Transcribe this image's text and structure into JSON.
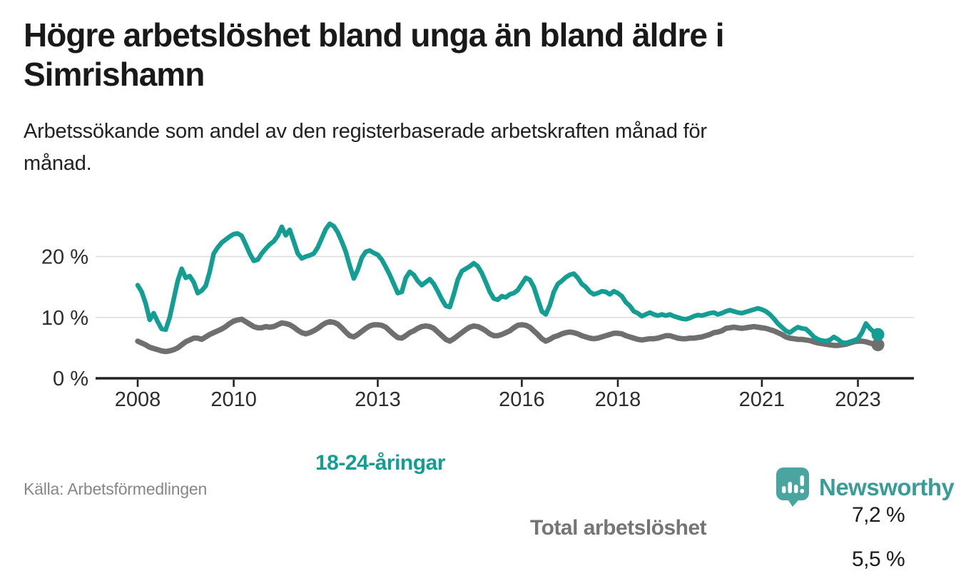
{
  "header": {
    "title_lines": [
      "Högre arbetslöshet bland unga än bland äldre i",
      "Simrishamn"
    ],
    "subtitle_lines": [
      "Arbetssökande som andel av den registerbaserade arbetskraften månad för",
      "månad."
    ]
  },
  "chart_data": {
    "type": "line",
    "unit": "%",
    "frequency": "monthly",
    "period_start": "2008-01",
    "period_end": "2023-06",
    "grid": "horizontal-only",
    "ylim": [
      0,
      27
    ],
    "y_ticks": [
      {
        "label": "0 %",
        "value": 0
      },
      {
        "label": "10 %",
        "value": 10
      },
      {
        "label": "20 %",
        "value": 20
      }
    ],
    "x_ticks": [
      {
        "label": "2008",
        "year": 2008
      },
      {
        "label": "2010",
        "year": 2010
      },
      {
        "label": "2013",
        "year": 2013
      },
      {
        "label": "2016",
        "year": 2016
      },
      {
        "label": "2018",
        "year": 2018
      },
      {
        "label": "2021",
        "year": 2021
      },
      {
        "label": "2023",
        "year": 2023
      }
    ],
    "series": [
      {
        "id": "youth",
        "name": "18-24-åringar",
        "color": "#149e93",
        "end_value": 7.2,
        "end_label": "7,2 %",
        "values": [
          15.3,
          14.2,
          12.3,
          9.6,
          10.7,
          9.3,
          8.1,
          8.0,
          10.0,
          13.0,
          16.0,
          18.0,
          16.5,
          16.8,
          15.8,
          14.0,
          14.4,
          15.2,
          17.5,
          20.5,
          21.5,
          22.3,
          22.8,
          23.3,
          23.7,
          23.8,
          23.4,
          22.0,
          20.5,
          19.3,
          19.5,
          20.5,
          21.3,
          22.0,
          22.5,
          23.4,
          24.9,
          23.5,
          24.4,
          22.5,
          20.5,
          19.7,
          20.0,
          20.2,
          20.5,
          21.5,
          23.0,
          24.5,
          25.4,
          25.0,
          24.0,
          22.5,
          20.8,
          18.5,
          16.4,
          17.8,
          19.8,
          20.8,
          21.0,
          20.6,
          20.3,
          19.5,
          18.3,
          17.0,
          15.5,
          14.0,
          14.2,
          16.5,
          17.5,
          17.0,
          16.0,
          15.3,
          15.8,
          16.3,
          15.5,
          14.3,
          13.0,
          11.9,
          11.7,
          13.8,
          16.2,
          17.6,
          18.0,
          18.4,
          18.9,
          18.4,
          17.3,
          15.8,
          14.2,
          13.1,
          12.9,
          13.5,
          13.3,
          13.8,
          14.0,
          14.5,
          15.5,
          16.5,
          16.2,
          15.0,
          13.0,
          11.0,
          10.5,
          12.0,
          14.2,
          15.5,
          16.0,
          16.6,
          17.0,
          17.2,
          16.5,
          15.5,
          15.0,
          14.2,
          13.8,
          14.0,
          14.3,
          14.2,
          13.8,
          14.3,
          14.0,
          13.5,
          12.5,
          11.9,
          11.0,
          10.7,
          10.2,
          10.5,
          10.8,
          10.5,
          10.3,
          10.5,
          10.3,
          10.5,
          10.2,
          10.0,
          9.8,
          9.7,
          9.9,
          10.2,
          10.4,
          10.3,
          10.5,
          10.7,
          10.8,
          10.5,
          10.7,
          11.0,
          11.2,
          11.0,
          10.8,
          10.7,
          10.9,
          11.1,
          11.3,
          11.5,
          11.3,
          11.0,
          10.5,
          9.8,
          9.0,
          8.4,
          7.8,
          7.5,
          8.0,
          8.4,
          8.2,
          8.1,
          7.5,
          6.8,
          6.4,
          6.2,
          6.1,
          6.3,
          6.8,
          6.4,
          5.9,
          5.8,
          6.0,
          6.2,
          6.5,
          7.5,
          9.0,
          8.2,
          7.6,
          7.2
        ]
      },
      {
        "id": "total",
        "name": "Total arbetslöshet",
        "color": "#6f6f6f",
        "end_value": 5.5,
        "end_label": "5,5 %",
        "values": [
          6.1,
          5.8,
          5.5,
          5.1,
          4.9,
          4.7,
          4.5,
          4.4,
          4.5,
          4.7,
          5.0,
          5.5,
          6.0,
          6.3,
          6.6,
          6.6,
          6.4,
          6.8,
          7.2,
          7.5,
          7.8,
          8.1,
          8.5,
          9.0,
          9.4,
          9.6,
          9.7,
          9.3,
          8.9,
          8.5,
          8.3,
          8.3,
          8.5,
          8.4,
          8.5,
          8.8,
          9.1,
          9.0,
          8.8,
          8.4,
          7.9,
          7.5,
          7.3,
          7.5,
          7.8,
          8.2,
          8.7,
          9.1,
          9.3,
          9.2,
          8.9,
          8.3,
          7.6,
          7.0,
          6.8,
          7.2,
          7.7,
          8.2,
          8.6,
          8.8,
          8.8,
          8.7,
          8.4,
          7.8,
          7.2,
          6.7,
          6.6,
          7.0,
          7.5,
          7.8,
          8.2,
          8.5,
          8.6,
          8.5,
          8.2,
          7.6,
          7.0,
          6.4,
          6.1,
          6.5,
          7.0,
          7.5,
          8.0,
          8.4,
          8.6,
          8.5,
          8.2,
          7.8,
          7.3,
          7.0,
          7.0,
          7.2,
          7.5,
          7.8,
          8.3,
          8.7,
          8.8,
          8.7,
          8.4,
          7.8,
          7.2,
          6.5,
          6.1,
          6.4,
          6.8,
          7.0,
          7.3,
          7.5,
          7.6,
          7.5,
          7.3,
          7.0,
          6.8,
          6.6,
          6.5,
          6.6,
          6.8,
          7.0,
          7.2,
          7.4,
          7.4,
          7.3,
          7.0,
          6.8,
          6.6,
          6.4,
          6.3,
          6.4,
          6.5,
          6.5,
          6.6,
          6.8,
          7.0,
          7.0,
          6.8,
          6.6,
          6.5,
          6.5,
          6.6,
          6.6,
          6.7,
          6.8,
          7.0,
          7.2,
          7.5,
          7.6,
          7.8,
          8.2,
          8.3,
          8.4,
          8.3,
          8.2,
          8.3,
          8.4,
          8.5,
          8.4,
          8.3,
          8.2,
          8.0,
          7.8,
          7.5,
          7.2,
          6.8,
          6.6,
          6.5,
          6.4,
          6.4,
          6.3,
          6.2,
          6.0,
          5.8,
          5.7,
          5.6,
          5.5,
          5.4,
          5.4,
          5.5,
          5.6,
          5.8,
          6.0,
          6.1,
          6.1,
          6.0,
          5.8,
          5.6,
          5.5
        ]
      }
    ]
  },
  "footer": {
    "source": "Källa: Arbetsförmedlingen",
    "brand": "Newsworthy"
  },
  "colors": {
    "accent_teal": "#149e93",
    "line_gray": "#6f6f6f",
    "brand_icon": "#4aa5a0",
    "brand_text": "#3a9c96",
    "axis": "#222222",
    "gridline": "#dcdcdc"
  }
}
